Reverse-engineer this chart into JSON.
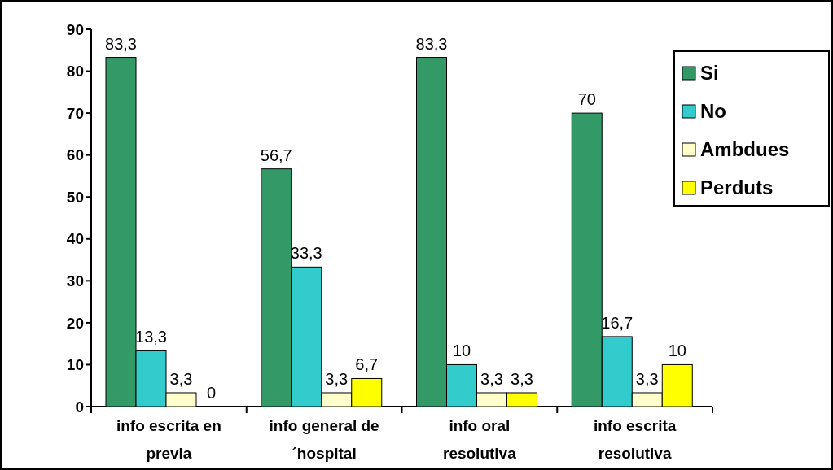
{
  "chart_data": {
    "type": "bar",
    "categories": [
      "info escrita en previa",
      "info general de ´hospital",
      "info oral resolutiva",
      "info escrita resolutiva"
    ],
    "series": [
      {
        "name": "Si",
        "color": "#339966",
        "values": [
          83.3,
          56.7,
          83.3,
          70
        ],
        "value_labels": [
          "83,3",
          "56,7",
          "83,3",
          "70"
        ]
      },
      {
        "name": "No",
        "color": "#33cccc",
        "values": [
          13.3,
          33.3,
          10,
          16.7
        ],
        "value_labels": [
          "13,3",
          "33,3",
          "10",
          "16,7"
        ]
      },
      {
        "name": "Ambdues",
        "color": "#ffffcc",
        "values": [
          3.3,
          3.3,
          3.3,
          3.3
        ],
        "value_labels": [
          "3,3",
          "3,3",
          "3,3",
          "3,3"
        ]
      },
      {
        "name": "Perduts",
        "color": "#ffff00",
        "values": [
          0,
          6.7,
          3.3,
          10
        ],
        "value_labels": [
          "0",
          "6,7",
          "3,3",
          "10"
        ]
      }
    ],
    "ylim": [
      0,
      90
    ],
    "yticks": [
      0,
      10,
      20,
      30,
      40,
      50,
      60,
      70,
      80,
      90
    ],
    "grid": false,
    "legend": "top right"
  }
}
